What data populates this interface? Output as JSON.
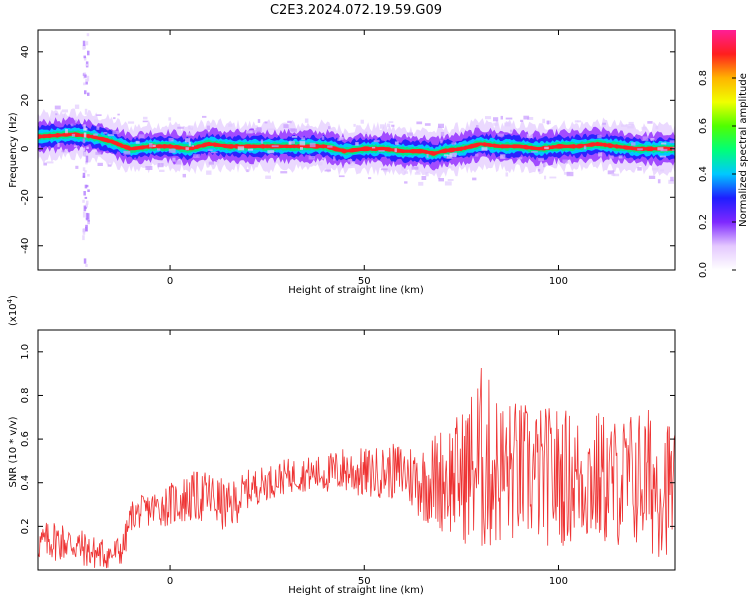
{
  "title": "C2E3.2024.072.19.59.G09",
  "chart_data": [
    {
      "type": "heatmap",
      "xlabel": "Height of straight line (km)",
      "ylabel": "Frequency (Hz)",
      "xlim": [
        -34,
        130
      ],
      "ylim": [
        -50,
        49
      ],
      "xticks": [
        0,
        50,
        100
      ],
      "yticks": [
        -40,
        -20,
        0,
        20,
        40
      ],
      "ridge": {
        "x": [
          -34,
          -25,
          -20,
          -15,
          -12,
          -10,
          -5,
          0,
          5,
          10,
          15,
          20,
          30,
          40,
          45,
          50,
          55,
          60,
          65,
          68,
          70,
          75,
          80,
          85,
          90,
          95,
          100,
          105,
          110,
          115,
          120,
          125,
          130
        ],
        "freq": [
          5,
          6,
          5,
          3,
          1,
          0,
          1,
          1,
          0,
          2,
          1,
          1,
          1,
          1,
          -1,
          0,
          0,
          -1,
          -1,
          -2,
          -1,
          0,
          2,
          1,
          1,
          0,
          1,
          1,
          2,
          1,
          0,
          0,
          0
        ]
      },
      "colorbar": {
        "label": "Normalized spectral amplitude",
        "ticks": [
          0.0,
          0.2,
          0.4,
          0.6,
          0.8
        ],
        "range": [
          0,
          1
        ]
      }
    },
    {
      "type": "line",
      "xlabel": "Height of straight line (km)",
      "ylabel": "SNR (10 * v/v)",
      "y_multiplier": "(x10",
      "y_multiplier_exp": "4",
      "xlim": [
        -34,
        130
      ],
      "ylim": [
        0,
        1.1
      ],
      "xticks": [
        0,
        50,
        100
      ],
      "yticks": [
        0.2,
        0.4,
        0.6,
        0.8,
        1.0
      ],
      "series": [
        {
          "color": "#ee3333",
          "x": [
            -34,
            -30,
            -25,
            -20,
            -15,
            -12,
            -10,
            -5,
            0,
            5,
            10,
            15,
            20,
            25,
            30,
            35,
            40,
            45,
            50,
            55,
            60,
            65,
            70,
            75,
            80,
            85,
            90,
            95,
            100,
            105,
            110,
            115,
            120,
            125,
            130
          ],
          "center": [
            0.12,
            0.14,
            0.12,
            0.08,
            0.07,
            0.1,
            0.25,
            0.28,
            0.3,
            0.33,
            0.34,
            0.28,
            0.37,
            0.4,
            0.43,
            0.44,
            0.44,
            0.46,
            0.44,
            0.45,
            0.45,
            0.4,
            0.42,
            0.43,
            0.5,
            0.45,
            0.45,
            0.43,
            0.43,
            0.42,
            0.42,
            0.4,
            0.42,
            0.4,
            0.38
          ],
          "spread": [
            0.08,
            0.1,
            0.09,
            0.08,
            0.07,
            0.08,
            0.07,
            0.08,
            0.1,
            0.12,
            0.12,
            0.12,
            0.09,
            0.08,
            0.08,
            0.08,
            0.09,
            0.11,
            0.12,
            0.12,
            0.14,
            0.18,
            0.25,
            0.3,
            0.45,
            0.35,
            0.33,
            0.32,
            0.33,
            0.3,
            0.32,
            0.3,
            0.33,
            0.35,
            0.3
          ]
        }
      ]
    }
  ]
}
